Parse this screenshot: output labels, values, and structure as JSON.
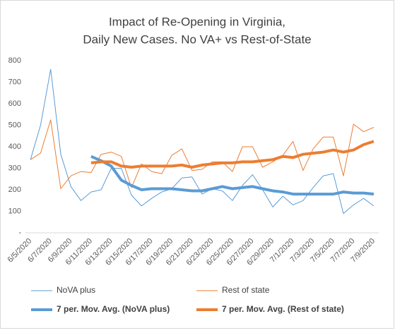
{
  "chart_data": {
    "type": "line",
    "title": [
      "Impact of Re-Opening in Virginia,",
      "Daily New Cases. No VA+ vs Rest-of-State"
    ],
    "categories": [
      "6/5/2020",
      null,
      "6/7/2020",
      null,
      "6/9/2020",
      null,
      "6/11/2020",
      null,
      "6/13/2020",
      null,
      "6/15/2020",
      null,
      "6/17/2020",
      null,
      "6/19/2020",
      null,
      "6/21/2020",
      null,
      "6/23/2020",
      null,
      "6/25/2020",
      null,
      "6/27/2020",
      null,
      "6/29/2020",
      null,
      "7/1/2020",
      null,
      "7/3/2020",
      null,
      "7/5/2020",
      null,
      "7/7/2020",
      null,
      "7/9/2020"
    ],
    "series": [
      {
        "name": "NoVA plus",
        "color": "#5b9bd5",
        "line_width": 1,
        "values": [
          340,
          500,
          760,
          365,
          215,
          150,
          190,
          200,
          300,
          300,
          175,
          125,
          160,
          190,
          205,
          255,
          260,
          180,
          205,
          195,
          150,
          220,
          270,
          200,
          120,
          170,
          130,
          150,
          210,
          265,
          275,
          90,
          130,
          160,
          125
        ]
      },
      {
        "name": "Rest of state",
        "color": "#ed7d31",
        "line_width": 1,
        "values": [
          340,
          370,
          525,
          205,
          265,
          285,
          280,
          365,
          375,
          355,
          210,
          320,
          285,
          275,
          360,
          390,
          290,
          295,
          330,
          330,
          285,
          400,
          400,
          305,
          330,
          360,
          425,
          290,
          390,
          445,
          445,
          265,
          505,
          470,
          490
        ]
      },
      {
        "name": "7 per. Mov. Avg. (NoVA plus)",
        "color": "#5b9bd5",
        "line_width": 4,
        "values": [
          null,
          null,
          null,
          null,
          null,
          null,
          355,
          335,
          310,
          245,
          220,
          200,
          205,
          205,
          205,
          200,
          195,
          195,
          205,
          215,
          205,
          210,
          215,
          205,
          195,
          190,
          180,
          180,
          180,
          180,
          180,
          190,
          185,
          185,
          180
        ]
      },
      {
        "name": "7 per. Mov. Avg. (Rest of state)",
        "color": "#ed7d31",
        "line_width": 4,
        "values": [
          null,
          null,
          null,
          null,
          null,
          null,
          325,
          330,
          330,
          310,
          305,
          310,
          310,
          310,
          310,
          315,
          305,
          315,
          320,
          325,
          325,
          330,
          330,
          335,
          340,
          355,
          350,
          365,
          370,
          375,
          385,
          375,
          385,
          410,
          425
        ]
      }
    ],
    "ylim": [
      0,
      800
    ],
    "yticks": [
      {
        "value": 0,
        "label": "-"
      },
      100,
      200,
      300,
      400,
      500,
      600,
      700,
      800
    ],
    "grid": false,
    "legend": "bottom"
  }
}
